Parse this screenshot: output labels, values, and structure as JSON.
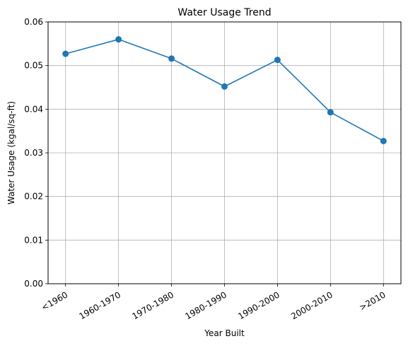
{
  "chart_data": {
    "type": "line",
    "title": "Water Usage Trend",
    "xlabel": "Year Built",
    "ylabel": "Water Usage (kgal/sq-ft)",
    "categories": [
      "<1960",
      "1960-1970",
      "1970-1980",
      "1980-1990",
      "1990-2000",
      "2000-2010",
      ">2010"
    ],
    "series": [
      {
        "values": [
          0.0527,
          0.056,
          0.0516,
          0.0452,
          0.0513,
          0.0393,
          0.0327
        ],
        "color": "#1f77b4",
        "marker": "circle"
      }
    ],
    "ylim": [
      0.0,
      0.06
    ],
    "yticks": [
      "0.00",
      "0.01",
      "0.02",
      "0.03",
      "0.04",
      "0.05",
      "0.06"
    ],
    "grid": true,
    "grid_color": "#b0b0b0",
    "xtick_rotation_deg": -30
  }
}
